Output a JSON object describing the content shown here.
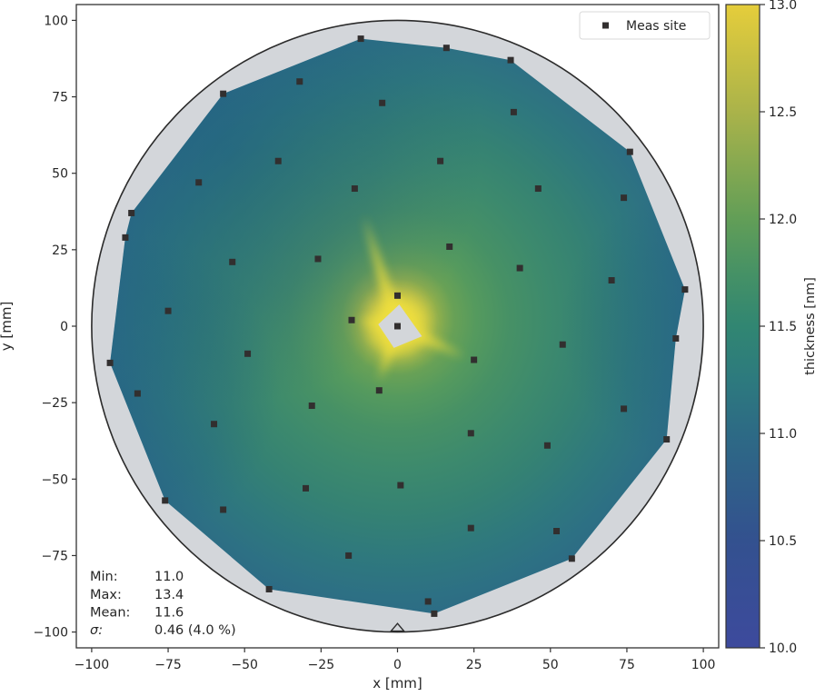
{
  "chart_data": {
    "type": "scatter",
    "subtype": "interpolated-wafer-thickness-contour-map",
    "title": "",
    "xlabel": "x [mm]",
    "ylabel": "y [mm]",
    "xlim": [
      -105,
      105
    ],
    "ylim": [
      -105,
      105
    ],
    "grid": false,
    "x_tick_values": [
      -100,
      -75,
      -50,
      -25,
      0,
      25,
      50,
      75,
      100
    ],
    "x_tick_labels": [
      "−100",
      "−75",
      "−50",
      "−25",
      "0",
      "25",
      "50",
      "75",
      "100"
    ],
    "y_tick_values": [
      100,
      75,
      50,
      25,
      0,
      -25,
      -50,
      -75,
      -100
    ],
    "y_tick_labels": [
      "100",
      "75",
      "50",
      "25",
      "0",
      "−25",
      "−50",
      "−75",
      "−100"
    ],
    "wafer_radius_mm": 100,
    "notch_mm": [
      [
        -2.1,
        -99.7
      ],
      [
        2.1,
        -99.7
      ],
      [
        0,
        -97.2
      ]
    ],
    "legend": {
      "position": "upper right",
      "entries": [
        {
          "label": "Meas site",
          "marker": "black-square"
        }
      ]
    },
    "colorbar": {
      "label": "thickness [nm]",
      "vmin": 10.0,
      "vmax": 13.0,
      "tick_values": [
        13.0,
        12.5,
        12.0,
        11.5,
        11.0,
        10.5,
        10.0
      ],
      "tick_labels": [
        "13.0",
        "12.5",
        "12.0",
        "11.5",
        "11.0",
        "10.5",
        "10.0"
      ]
    },
    "stats": {
      "rows": [
        {
          "label": "Min:",
          "value": "11.0",
          "italic": false
        },
        {
          "label": "Max:",
          "value": "13.4",
          "italic": false
        },
        {
          "label": "Mean:",
          "value": "11.6",
          "italic": false
        },
        {
          "label": "σ:",
          "value": "0.46 (4.0 %)",
          "italic": true
        }
      ]
    },
    "measured_summary": {
      "min_nm": 11.0,
      "max_nm": 13.4,
      "mean_nm": 11.6,
      "sigma_nm": 0.46,
      "sigma_pct": 4.0
    },
    "sites_mm": [
      [
        -12,
        94
      ],
      [
        16,
        91
      ],
      [
        37,
        87
      ],
      [
        -32,
        80
      ],
      [
        -57,
        76
      ],
      [
        -5,
        73
      ],
      [
        38,
        70
      ],
      [
        76,
        57
      ],
      [
        -39,
        54
      ],
      [
        14,
        54
      ],
      [
        -65,
        47
      ],
      [
        -14,
        45
      ],
      [
        46,
        45
      ],
      [
        74,
        42
      ],
      [
        -87,
        37
      ],
      [
        -89,
        29
      ],
      [
        17,
        26
      ],
      [
        -26,
        22
      ],
      [
        -54,
        21
      ],
      [
        40,
        19
      ],
      [
        70,
        15
      ],
      [
        94,
        12
      ],
      [
        0,
        10
      ],
      [
        -75,
        5
      ],
      [
        -15,
        2
      ],
      [
        0,
        0
      ],
      [
        91,
        -4
      ],
      [
        54,
        -6
      ],
      [
        -49,
        -9
      ],
      [
        25,
        -11
      ],
      [
        -94,
        -12
      ],
      [
        -6,
        -21
      ],
      [
        -85,
        -22
      ],
      [
        -28,
        -26
      ],
      [
        74,
        -27
      ],
      [
        -60,
        -32
      ],
      [
        24,
        -35
      ],
      [
        88,
        -37
      ],
      [
        49,
        -39
      ],
      [
        1,
        -52
      ],
      [
        -30,
        -53
      ],
      [
        -76,
        -57
      ],
      [
        -57,
        -60
      ],
      [
        24,
        -66
      ],
      [
        52,
        -67
      ],
      [
        -16,
        -75
      ],
      [
        57,
        -76
      ],
      [
        -42,
        -86
      ],
      [
        10,
        -90
      ],
      [
        12,
        -94
      ]
    ],
    "hull_mm": [
      [
        -12,
        94
      ],
      [
        16,
        91
      ],
      [
        37,
        87
      ],
      [
        76,
        57
      ],
      [
        94,
        12
      ],
      [
        91,
        -4
      ],
      [
        88,
        -37
      ],
      [
        57,
        -76
      ],
      [
        12,
        -94
      ],
      [
        -42,
        -86
      ],
      [
        -76,
        -57
      ],
      [
        -94,
        -12
      ],
      [
        -89,
        29
      ],
      [
        -87,
        37
      ],
      [
        -57,
        76
      ]
    ],
    "over_range_region_mm": [
      [
        0.6,
        7.1
      ],
      [
        8,
        -3.3
      ],
      [
        -1.2,
        -7.1
      ],
      [
        -6.3,
        0.6
      ]
    ],
    "interp_rays_mm": [
      [
        -11,
        36
      ],
      [
        0,
        9
      ],
      [
        -13,
        2
      ],
      [
        -6,
        -18
      ],
      [
        22,
        -10
      ]
    ]
  },
  "colors": {
    "background": "#ffffff",
    "frame": "#333333",
    "text": "#262626",
    "wafer_gray": "#d3d6da",
    "marker": "#322f2f",
    "legend_border": "#d9d9d9",
    "legend_bg": "#ffffff",
    "glow_yellow": "#efdf3e",
    "overlay_blue": "#1e5a82",
    "surface_gradient": [
      [
        0.0,
        "#e8d840"
      ],
      [
        0.05,
        "#ddd243"
      ],
      [
        0.09,
        "#b9bf47"
      ],
      [
        0.13,
        "#8cad4e"
      ],
      [
        0.18,
        "#68a156"
      ],
      [
        0.25,
        "#559a5e"
      ],
      [
        0.35,
        "#479165"
      ],
      [
        0.48,
        "#3d8a6d"
      ],
      [
        0.62,
        "#358273"
      ],
      [
        0.76,
        "#2f797d"
      ],
      [
        0.89,
        "#2d7084"
      ],
      [
        1.0,
        "#2c6886"
      ]
    ],
    "colorbar_gradient": [
      [
        0.0,
        "#e5cd3b"
      ],
      [
        0.167,
        "#aab34a"
      ],
      [
        0.333,
        "#629e57"
      ],
      [
        0.42,
        "#459166"
      ],
      [
        0.5,
        "#318672"
      ],
      [
        0.583,
        "#2d7a7e"
      ],
      [
        0.667,
        "#2d6a85"
      ],
      [
        0.833,
        "#33518f"
      ],
      [
        1.0,
        "#3d4a9d"
      ]
    ]
  }
}
